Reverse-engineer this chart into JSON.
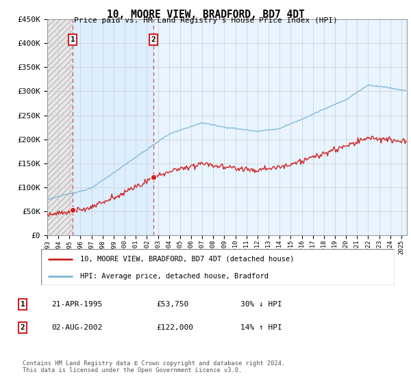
{
  "title": "10, MOORE VIEW, BRADFORD, BD7 4DT",
  "subtitle": "Price paid vs. HM Land Registry's House Price Index (HPI)",
  "ylim": [
    0,
    450000
  ],
  "yticks": [
    0,
    50000,
    100000,
    150000,
    200000,
    250000,
    300000,
    350000,
    400000,
    450000
  ],
  "ytick_labels": [
    "£0",
    "£50K",
    "£100K",
    "£150K",
    "£200K",
    "£250K",
    "£300K",
    "£350K",
    "£400K",
    "£450K"
  ],
  "xlim_start": 1993.0,
  "xlim_end": 2025.5,
  "t1": 1995.3,
  "p1": 53750,
  "t2": 2002.6,
  "p2": 122000,
  "transactions": [
    {
      "year": 1995.3,
      "price": 53750,
      "label": "1"
    },
    {
      "year": 2002.6,
      "price": 122000,
      "label": "2"
    }
  ],
  "legend_line1": "10, MOORE VIEW, BRADFORD, BD7 4DT (detached house)",
  "legend_line2": "HPI: Average price, detached house, Bradford",
  "table_rows": [
    {
      "num": "1",
      "date": "21-APR-1995",
      "price": "£53,750",
      "hpi": "30% ↓ HPI"
    },
    {
      "num": "2",
      "date": "02-AUG-2002",
      "price": "£122,000",
      "hpi": "14% ↑ HPI"
    }
  ],
  "footer": "Contains HM Land Registry data © Crown copyright and database right 2024.\nThis data is licensed under the Open Government Licence v3.0.",
  "hpi_color": "#7ab4d8",
  "price_color": "#cc2222",
  "grid_color": "#cccccc"
}
